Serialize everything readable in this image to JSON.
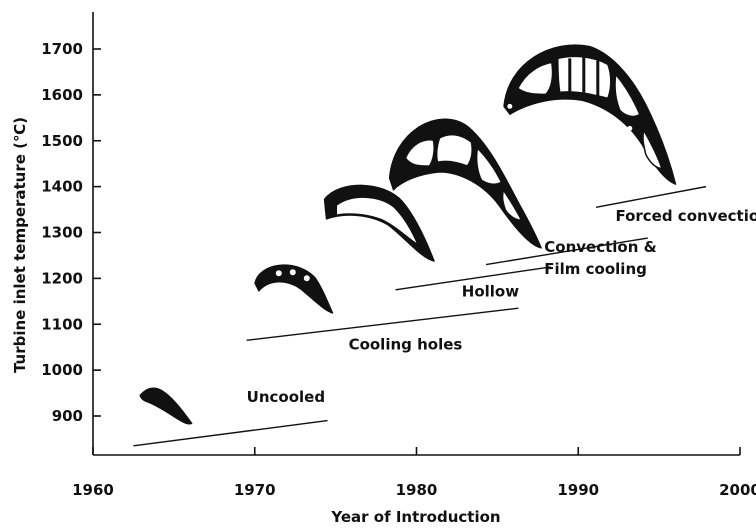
{
  "chart_data": {
    "type": "line",
    "title": "",
    "xlabel": "Year of Introduction",
    "ylabel": "Turbine inlet temperature (℃)",
    "xlim": [
      1960,
      2000
    ],
    "ylim": [
      840,
      1750
    ],
    "x_ticks": [
      1960,
      1970,
      1980,
      1990,
      2000
    ],
    "y_ticks": [
      900,
      1000,
      1100,
      1200,
      1300,
      1400,
      1500,
      1600,
      1700
    ],
    "grid": false,
    "series": [
      {
        "label": "Uncooled",
        "x": [
          1962.5,
          1974.5
        ],
        "y": [
          835,
          890
        ],
        "label_at": [
          1969.5,
          930
        ]
      },
      {
        "label": "Cooling holes",
        "x": [
          1969.5,
          1986.3
        ],
        "y": [
          1065,
          1135
        ],
        "label_at": [
          1975.8,
          1045
        ]
      },
      {
        "label": "Hollow",
        "x": [
          1978.7,
          1988.3
        ],
        "y": [
          1175,
          1225
        ],
        "label_at": [
          1982.8,
          1160
        ]
      },
      {
        "label": "Convection &",
        "label2": "Film cooling",
        "x": [
          1984.3,
          1994.3
        ],
        "y": [
          1230,
          1288
        ],
        "label_at": [
          1987.9,
          1258
        ]
      },
      {
        "label": "Forced convection",
        "x": [
          1991.1,
          1997.9
        ],
        "y": [
          1355,
          1400
        ],
        "label_at": [
          1992.3,
          1325
        ]
      }
    ],
    "blades": [
      {
        "name": "uncooled-blade",
        "x": [
          1962.9,
          1966.2
        ],
        "y": [
          880,
          945
        ]
      },
      {
        "name": "cooling-holes-blade",
        "x": [
          1970.0,
          1974.6
        ],
        "y": [
          1120,
          1220
        ]
      },
      {
        "name": "hollow-blade",
        "x": [
          1974.3,
          1981.4
        ],
        "y": [
          1250,
          1390
        ]
      },
      {
        "name": "convection-film-blade",
        "x": [
          1978.2,
          1988.2
        ],
        "y": [
          1290,
          1545
        ]
      },
      {
        "name": "forced-convection-blade",
        "x": [
          1985.4,
          1995.3
        ],
        "y": [
          1420,
          1710
        ]
      }
    ]
  }
}
